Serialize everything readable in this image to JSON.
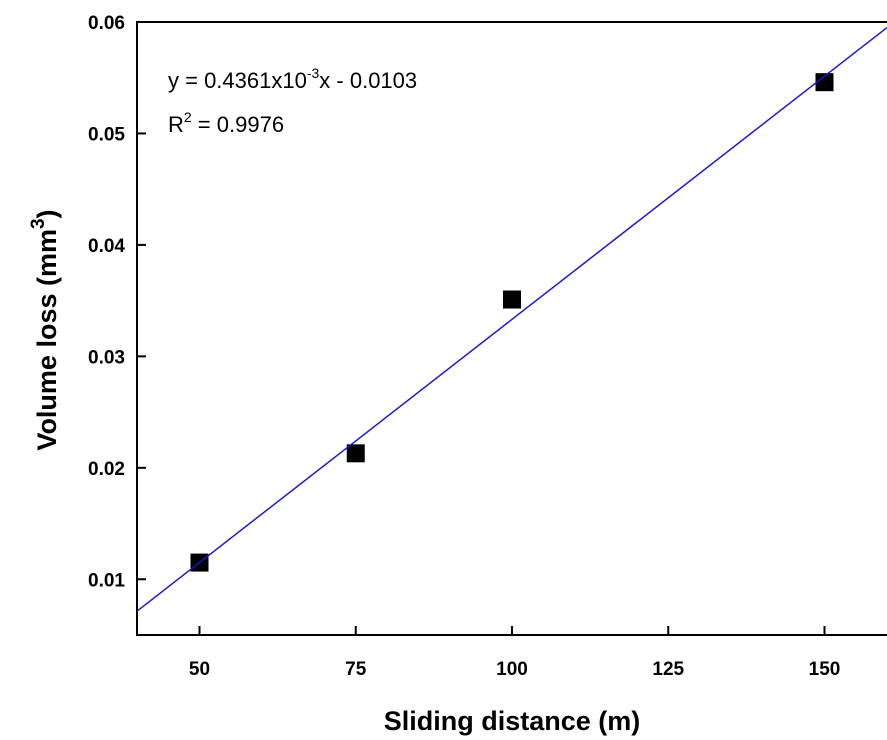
{
  "chart_data": {
    "type": "scatter",
    "x_label": "Sliding distance (m)",
    "y_label": [
      "Volume loss (mm",
      "3",
      ")"
    ],
    "annotations": [
      [
        "y   = 0.4361x10",
        "-3",
        "x - 0.0103"
      ],
      [
        "R",
        "2",
        " = 0.9976"
      ]
    ],
    "xlim": [
      40,
      160
    ],
    "xticks": [
      50,
      75,
      100,
      125,
      150
    ],
    "ylim": [
      0.005,
      0.06
    ],
    "yticks": [
      0.01,
      0.02,
      0.03,
      0.04,
      0.05,
      0.06
    ],
    "series": [
      {
        "color": "#000000",
        "marker": "square",
        "x": [
          50,
          75,
          100,
          150
        ],
        "values": [
          0.0115,
          0.0213,
          0.0351,
          0.0546
        ]
      },
      {
        "color": "#1a1acc",
        "marker": "line",
        "x": [
          40,
          160
        ],
        "values": [
          0.00714,
          0.0595
        ]
      }
    ]
  }
}
